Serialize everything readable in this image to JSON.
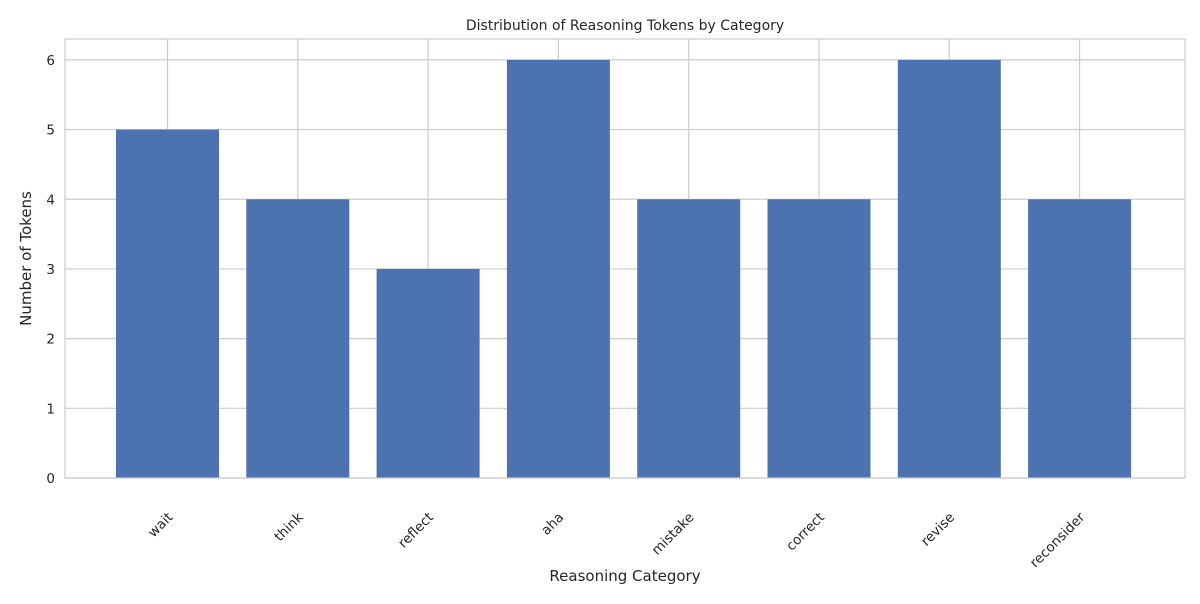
{
  "chart_data": {
    "type": "bar",
    "title": "Distribution of Reasoning Tokens by Category",
    "xlabel": "Reasoning Category",
    "ylabel": "Number of Tokens",
    "categories": [
      "wait",
      "think",
      "reflect",
      "aha",
      "mistake",
      "correct",
      "revise",
      "reconsider"
    ],
    "values": [
      5,
      4,
      3,
      6,
      4,
      4,
      6,
      4
    ],
    "ylim": [
      0,
      6.3
    ],
    "yticks": [
      "0",
      "1",
      "2",
      "3",
      "4",
      "5",
      "6"
    ],
    "grid": true,
    "legend": "none",
    "bar_color": "#4c72b0",
    "grid_color": "#cccccc",
    "background_color": "#ffffff"
  }
}
